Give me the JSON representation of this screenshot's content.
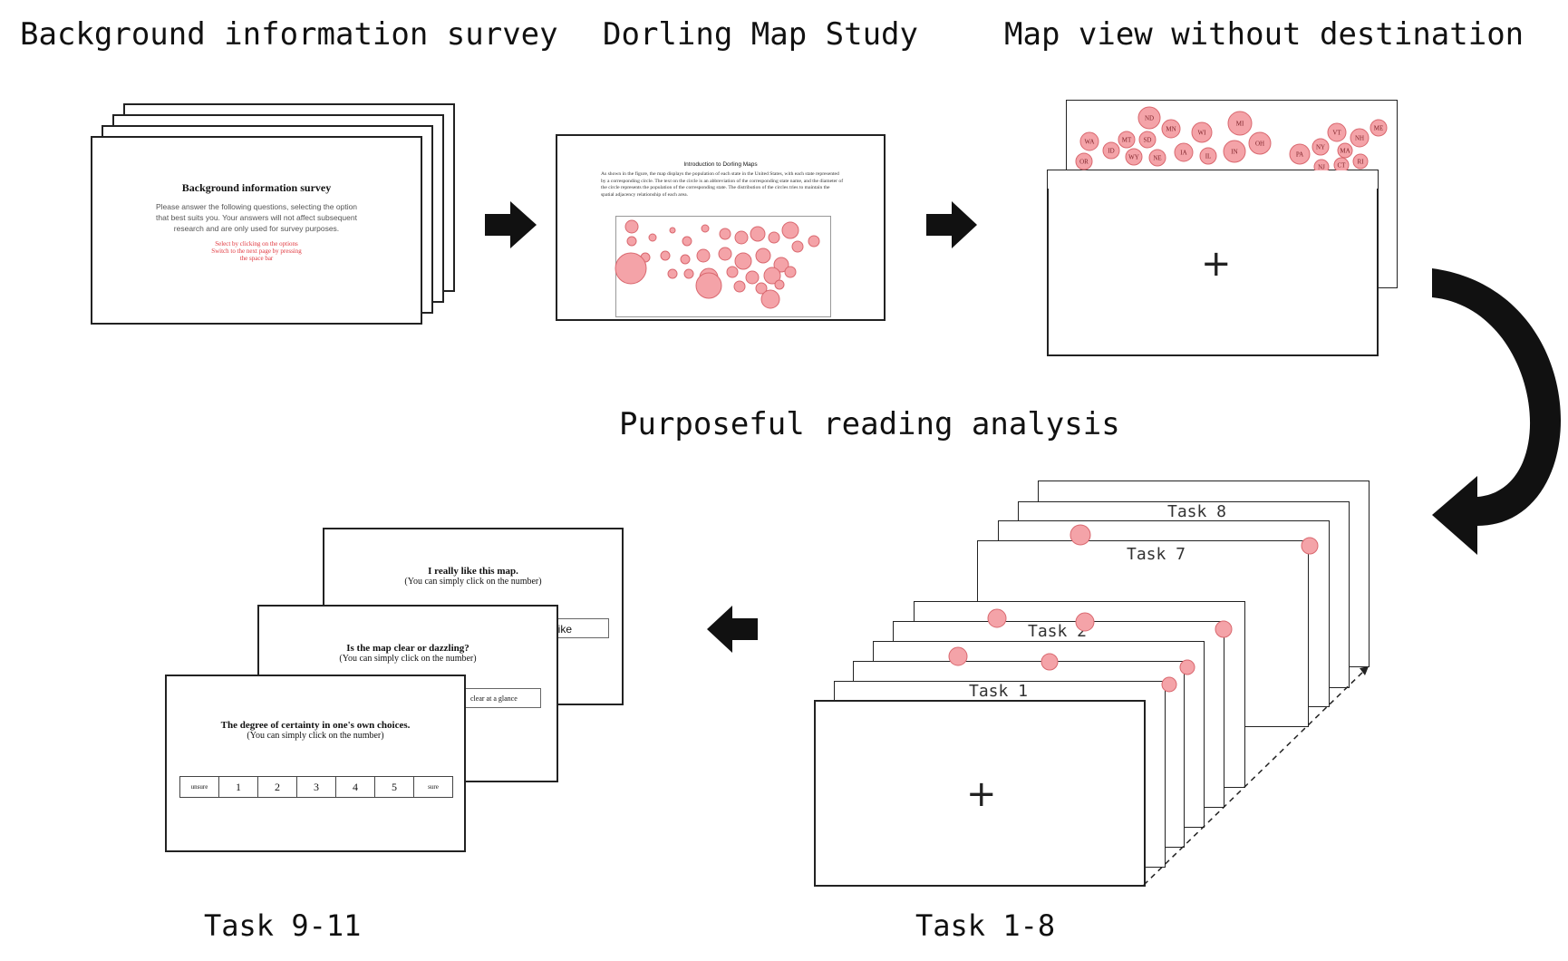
{
  "stages": {
    "background": {
      "title": "Background information survey"
    },
    "dorling": {
      "title": "Dorling Map Study"
    },
    "map_view": {
      "title": "Map view without destination"
    },
    "purposeful": {
      "title": "Purposeful reading analysis"
    },
    "tasks_1_8": {
      "label": "Task 1-8"
    },
    "tasks_9_11": {
      "label": "Task 9-11"
    }
  },
  "survey_card": {
    "heading": "Background information survey",
    "body": "Please answer the following questions, selecting the option that best suits you. Your answers will not affect subsequent research and are only used for survey purposes.",
    "hint1": "Select by clicking on the options",
    "hint2": "Switch to the next page by pressing the space bar"
  },
  "intro_card": {
    "heading": "Introduction to Dorling Maps",
    "body": "As shown in the figure, the map displays the population of each state in the United States, with each state represented by a corresponding circle. The text on the circle is an abbreviation of the corresponding state name, and the diameter of the circle represents the population of the corresponding state. The distribution of the circles tries to maintain the spatial adjacency relationship of each area."
  },
  "map_states": [
    "ND",
    "MN",
    "MI",
    "WA",
    "MT",
    "SD",
    "WI",
    "ID",
    "WY",
    "NE",
    "IA",
    "IL",
    "IN",
    "OH",
    "OR",
    "VT",
    "NH",
    "ME",
    "NY",
    "MA",
    "PA",
    "CT",
    "NJ",
    "RI"
  ],
  "fixation": "+",
  "task_cards": [
    "Task 8",
    "Task 7",
    "Task 2",
    "Task 1"
  ],
  "question_cards": {
    "q1": {
      "title": "I really like this map.",
      "sub": "(You can simply click on the number)",
      "partial": "like"
    },
    "q2": {
      "title": "Is the map clear or dazzling?",
      "sub": "(You can simply click on the number)",
      "partial": "clear at a glance"
    },
    "q3": {
      "title": "The degree of certainty in one's own choices.",
      "sub": "(You can simply click on the number)",
      "scale": [
        "unsure",
        "1",
        "2",
        "3",
        "4",
        "5",
        "sure"
      ]
    }
  },
  "colors": {
    "circle_fill": "#f4a3a8",
    "circle_stroke": "#d9686f",
    "ink": "#111111"
  }
}
